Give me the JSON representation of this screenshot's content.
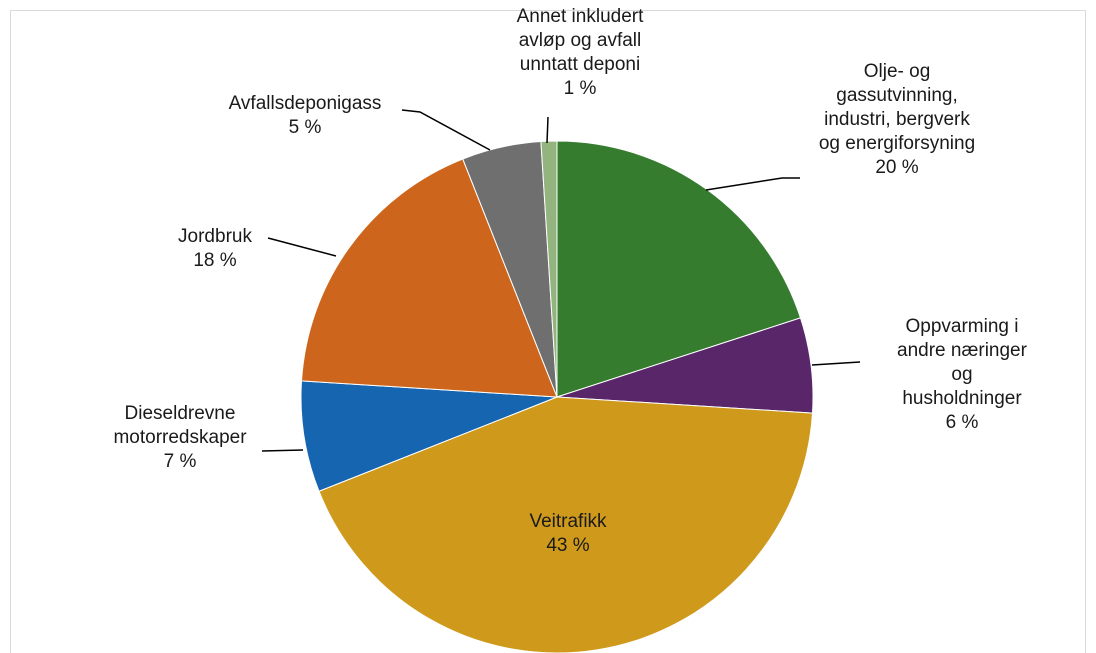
{
  "chart_data": {
    "type": "pie",
    "categories": [
      "Olje- og\ngassutvinning,\nindustri, bergverk\nog energiforsyning",
      "Oppvarming i\nandre næringer og\nhusholdninger",
      "Veitrafikk",
      "Dieseldrevne\nmotorredskaper",
      "Jordbruk",
      "Avfallsdeponigass",
      "Annet inkludert\navløp og avfall\nunntatt deponi"
    ],
    "values": [
      20,
      6,
      43,
      7,
      18,
      5,
      1
    ],
    "value_labels": [
      "20 %",
      "6 %",
      "43 %",
      "7 %",
      "18 %",
      "5 %",
      "1 %"
    ],
    "colors": [
      "#367c2f",
      "#582669",
      "#cf9a1c",
      "#1565b0",
      "#cd661c",
      "#6f6f6f",
      "#94b47f"
    ]
  }
}
